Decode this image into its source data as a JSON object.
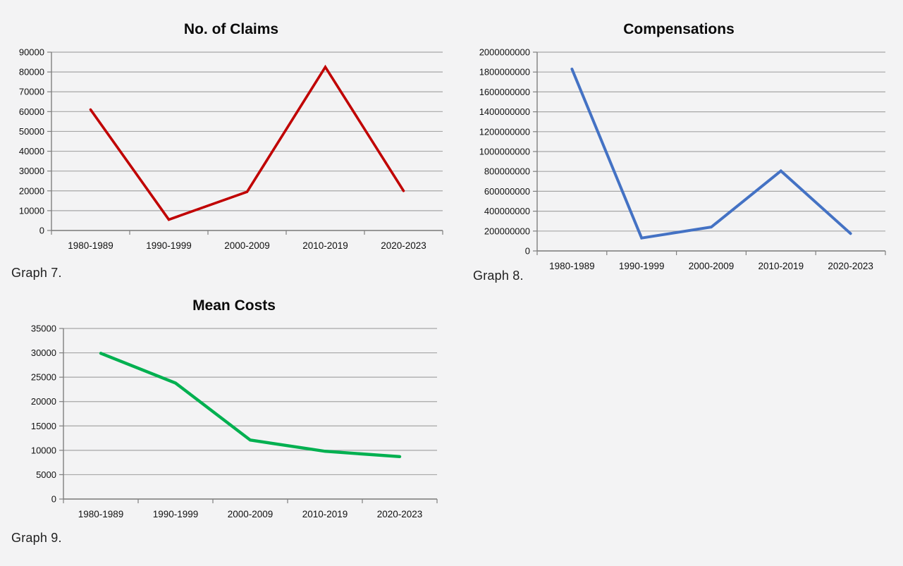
{
  "style": {
    "background": "#f3f3f4",
    "grid_color": "#a6a6a6",
    "axis_color": "#7f7f7f",
    "label_color": "#111111",
    "title_color": "#0a0a0a",
    "caption_color": "#1f1f1f"
  },
  "captions": {
    "graph7": "Graph 7.",
    "graph8": "Graph 8.",
    "graph9": "Graph 9."
  },
  "chart_data": [
    {
      "name": "claims",
      "type": "line",
      "title": "No. of Claims",
      "caption": "Graph 7.",
      "color": "#C00000",
      "categories": [
        "1980-1989",
        "1990-1999",
        "2000-2009",
        "2010-2019",
        "2020-2023"
      ],
      "values": [
        61000,
        5500,
        19500,
        82500,
        20000
      ],
      "ylim": [
        0,
        90000
      ],
      "y_step": 10000,
      "xlabel": "",
      "ylabel": "",
      "grid": true,
      "legend": "none"
    },
    {
      "name": "compensations",
      "type": "line",
      "title": "Compensations",
      "caption": "Graph 8.",
      "color": "#4472C4",
      "categories": [
        "1980-1989",
        "1990-1999",
        "2000-2009",
        "2010-2019",
        "2020-2023"
      ],
      "values": [
        1830000000,
        130000000,
        240000000,
        805000000,
        175000000
      ],
      "ylim": [
        0,
        2000000000
      ],
      "y_step": 200000000,
      "xlabel": "",
      "ylabel": "",
      "grid": true,
      "legend": "none"
    },
    {
      "name": "mean-costs",
      "type": "line",
      "title": "Mean Costs",
      "caption": "Graph 9.",
      "color": "#00B050",
      "categories": [
        "1980-1989",
        "1990-1999",
        "2000-2009",
        "2010-2019",
        "2020-2023"
      ],
      "values": [
        29900,
        23800,
        12100,
        9800,
        8700
      ],
      "ylim": [
        0,
        35000
      ],
      "y_step": 5000,
      "xlabel": "",
      "ylabel": "",
      "grid": true,
      "legend": "none"
    }
  ]
}
